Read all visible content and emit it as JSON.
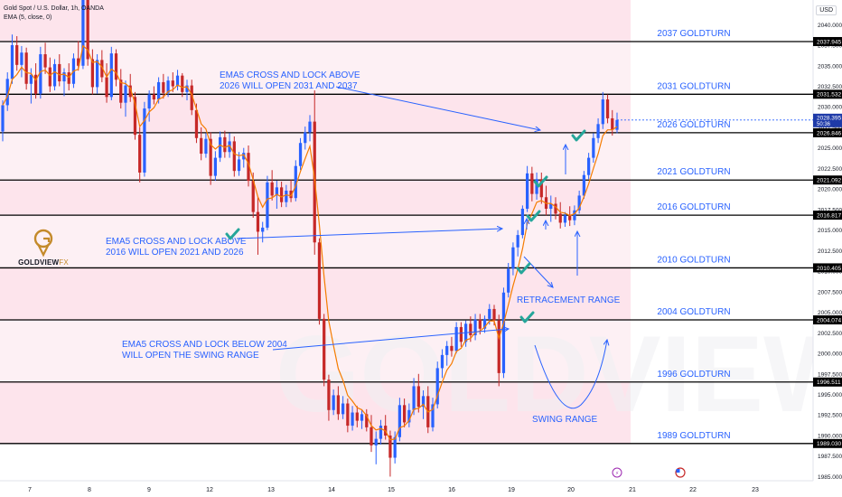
{
  "header": {
    "symbol_title": "Gold Spot / U.S. Dollar, 1h, OANDA",
    "indicator": "EMA (5, close, 0)",
    "currency": "USD"
  },
  "logo": {
    "brand_bold": "GOLDVIEW",
    "brand_light": "FX",
    "watermark": "GOLDVIEW"
  },
  "colors": {
    "pink_zone": "#fde4ec",
    "up_candle": "#2962ff",
    "down_candle": "#c62828",
    "ema_line": "#f57c00",
    "annotation": "#2962ff",
    "check": "#26a69a",
    "level_line": "#000000",
    "axis_text": "#131722"
  },
  "chart_data": {
    "type": "candlestick",
    "title": "Gold Spot / U.S. Dollar, 1h, OANDA",
    "ylim": [
      1984.5,
      2043.0
    ],
    "y_ticks": [
      1985.0,
      1987.5,
      1990.0,
      1992.5,
      1995.0,
      1997.5,
      2000.0,
      2002.5,
      2005.0,
      2007.5,
      2010.0,
      2012.5,
      2015.0,
      2017.5,
      2020.0,
      2022.5,
      2025.0,
      2027.5,
      2030.0,
      2032.5,
      2035.0,
      2037.5,
      2040.0
    ],
    "x_ticks": [
      "7",
      "8",
      "9",
      "12",
      "13",
      "14",
      "15",
      "16",
      "19",
      "20",
      "21",
      "22",
      "23"
    ],
    "current_price": "2028.395",
    "countdown": "50:36",
    "levels": [
      {
        "value": 2037.945,
        "label": "2037.945",
        "text": "2037 GOLDTURN"
      },
      {
        "value": 2031.532,
        "label": "2031.532",
        "text": "2031 GOLDTURN"
      },
      {
        "value": 2026.846,
        "label": "2026.846",
        "text": "2026 GOLDTURN"
      },
      {
        "value": 2021.092,
        "label": "2021.092",
        "text": "2021 GOLDTURN"
      },
      {
        "value": 2016.817,
        "label": "2016.817",
        "text": "2016 GOLDTURN"
      },
      {
        "value": 2010.405,
        "label": "2010.405",
        "text": "2010 GOLDTURN"
      },
      {
        "value": 2004.074,
        "label": "2004.074",
        "text": "2004 GOLDTURN"
      },
      {
        "value": 1996.511,
        "label": "1996.511",
        "text": "1996 GOLDTURN"
      },
      {
        "value": 1989.03,
        "label": "1989.030",
        "text": "1989 GOLDTURN"
      }
    ],
    "annotations": [
      {
        "lines": [
          "EMA5 CROSS AND LOCK ABOVE",
          "2026 WILL OPEN 2031 AND 2037"
        ]
      },
      {
        "lines": [
          "EMA5 CROSS AND LOCK ABOVE",
          "2016 WILL OPEN 2021 AND 2026"
        ]
      },
      {
        "lines": [
          "EMA5 CROSS AND LOCK BELOW 2004",
          "WILL OPEN THE SWING RANGE"
        ]
      },
      {
        "lines": [
          "RETRACEMENT RANGE"
        ]
      },
      {
        "lines": [
          "SWING RANGE"
        ]
      }
    ],
    "candles": [
      [
        2027.0,
        2030.8,
        2025.8,
        2030.2
      ],
      [
        2030.2,
        2034.2,
        2029.5,
        2033.4
      ],
      [
        2033.4,
        2038.8,
        2032.8,
        2037.5
      ],
      [
        2037.5,
        2038.6,
        2034.4,
        2035.1
      ],
      [
        2035.1,
        2037.4,
        2033.6,
        2036.6
      ],
      [
        2036.6,
        2037.2,
        2032.1,
        2032.8
      ],
      [
        2032.8,
        2034.7,
        2030.4,
        2033.9
      ],
      [
        2033.9,
        2035.3,
        2031.0,
        2031.6
      ],
      [
        2031.6,
        2037.3,
        2031.0,
        2036.4
      ],
      [
        2036.4,
        2037.8,
        2034.0,
        2034.8
      ],
      [
        2034.8,
        2036.0,
        2031.8,
        2032.5
      ],
      [
        2032.5,
        2035.8,
        2032.0,
        2035.2
      ],
      [
        2035.2,
        2036.4,
        2032.5,
        2033.1
      ],
      [
        2033.1,
        2034.7,
        2031.3,
        2034.2
      ],
      [
        2034.2,
        2035.3,
        2032.0,
        2032.8
      ],
      [
        2032.8,
        2036.5,
        2032.3,
        2035.9
      ],
      [
        2035.9,
        2038.0,
        2034.4,
        2035.0
      ],
      [
        2035.0,
        2046.0,
        2034.6,
        2043.2
      ],
      [
        2043.2,
        2044.5,
        2035.0,
        2035.8
      ],
      [
        2035.8,
        2037.0,
        2031.5,
        2032.4
      ],
      [
        2032.4,
        2036.4,
        2031.6,
        2035.7
      ],
      [
        2035.7,
        2036.9,
        2033.0,
        2033.6
      ],
      [
        2033.6,
        2035.3,
        2030.5,
        2031.2
      ],
      [
        2031.2,
        2037.3,
        2030.8,
        2036.5
      ],
      [
        2036.5,
        2037.0,
        2032.5,
        2033.3
      ],
      [
        2033.3,
        2034.6,
        2029.8,
        2030.5
      ],
      [
        2030.5,
        2033.2,
        2028.8,
        2032.6
      ],
      [
        2032.6,
        2034.0,
        2030.6,
        2031.2
      ],
      [
        2031.2,
        2031.8,
        2026.0,
        2026.6
      ],
      [
        2026.6,
        2027.5,
        2020.8,
        2022.0
      ],
      [
        2022.0,
        2030.6,
        2021.5,
        2029.8
      ],
      [
        2029.8,
        2032.0,
        2028.2,
        2031.5
      ],
      [
        2031.5,
        2032.5,
        2030.3,
        2030.9
      ],
      [
        2030.9,
        2033.6,
        2030.4,
        2033.0
      ],
      [
        2033.0,
        2034.0,
        2031.0,
        2031.7
      ],
      [
        2031.7,
        2033.7,
        2031.2,
        2033.2
      ],
      [
        2033.2,
        2034.2,
        2031.8,
        2032.5
      ],
      [
        2032.5,
        2034.5,
        2032.0,
        2033.8
      ],
      [
        2033.8,
        2034.1,
        2031.2,
        2031.8
      ],
      [
        2031.8,
        2033.3,
        2030.8,
        2032.6
      ],
      [
        2032.6,
        2033.3,
        2029.0,
        2029.6
      ],
      [
        2029.6,
        2030.4,
        2025.6,
        2026.2
      ],
      [
        2026.2,
        2027.5,
        2023.5,
        2024.3
      ],
      [
        2024.3,
        2026.8,
        2023.8,
        2026.1
      ],
      [
        2026.1,
        2026.9,
        2020.5,
        2021.6
      ],
      [
        2021.6,
        2024.6,
        2021.0,
        2023.8
      ],
      [
        2023.8,
        2027.0,
        2023.3,
        2026.3
      ],
      [
        2026.3,
        2027.1,
        2023.8,
        2024.5
      ],
      [
        2024.5,
        2026.8,
        2023.8,
        2025.8
      ],
      [
        2025.8,
        2026.4,
        2021.5,
        2022.2
      ],
      [
        2022.2,
        2024.5,
        2021.6,
        2023.6
      ],
      [
        2023.6,
        2025.0,
        2022.6,
        2024.4
      ],
      [
        2024.4,
        2025.3,
        2020.3,
        2021.0
      ],
      [
        2021.0,
        2022.0,
        2016.5,
        2017.2
      ],
      [
        2017.2,
        2019.0,
        2012.0,
        2014.8
      ],
      [
        2014.8,
        2016.0,
        2013.5,
        2015.3
      ],
      [
        2015.3,
        2021.6,
        2015.0,
        2020.8
      ],
      [
        2020.8,
        2022.3,
        2018.6,
        2019.2
      ],
      [
        2019.2,
        2021.0,
        2017.6,
        2020.2
      ],
      [
        2020.2,
        2020.9,
        2017.8,
        2018.4
      ],
      [
        2018.4,
        2020.5,
        2017.8,
        2019.8
      ],
      [
        2019.8,
        2021.1,
        2018.4,
        2018.9
      ],
      [
        2018.9,
        2023.5,
        2018.5,
        2022.8
      ],
      [
        2022.8,
        2026.2,
        2022.3,
        2025.6
      ],
      [
        2025.6,
        2027.6,
        2024.8,
        2026.9
      ],
      [
        2026.9,
        2029.0,
        2025.8,
        2028.2
      ],
      [
        2028.2,
        2032.0,
        2012.0,
        2013.5
      ],
      [
        2013.5,
        2014.0,
        2003.5,
        2004.2
      ],
      [
        2004.2,
        2004.8,
        1996.0,
        1996.8
      ],
      [
        1996.8,
        1997.4,
        1991.8,
        1993.1
      ],
      [
        1993.1,
        1995.6,
        1992.5,
        1994.9
      ],
      [
        1994.9,
        1996.0,
        1991.9,
        1992.6
      ],
      [
        1992.6,
        1994.8,
        1992.0,
        1993.9
      ],
      [
        1993.9,
        1994.5,
        1990.4,
        1991.2
      ],
      [
        1991.2,
        1993.6,
        1990.6,
        1992.8
      ],
      [
        1992.8,
        1993.6,
        1991.0,
        1991.8
      ],
      [
        1991.8,
        1993.2,
        1990.8,
        1992.6
      ],
      [
        1992.6,
        1993.2,
        1990.5,
        1991.0
      ],
      [
        1991.0,
        1992.5,
        1988.0,
        1988.8
      ],
      [
        1988.8,
        1990.5,
        1986.5,
        1989.6
      ],
      [
        1989.6,
        1991.9,
        1988.9,
        1991.2
      ],
      [
        1991.2,
        1992.5,
        1989.5,
        1990.0
      ],
      [
        1990.0,
        1990.6,
        1985.0,
        1987.3
      ],
      [
        1987.3,
        1990.5,
        1986.6,
        1989.8
      ],
      [
        1989.8,
        1994.6,
        1989.3,
        1993.7
      ],
      [
        1993.7,
        1994.5,
        1991.0,
        1991.6
      ],
      [
        1991.6,
        1993.9,
        1991.0,
        1993.1
      ],
      [
        1993.1,
        1997.0,
        1992.5,
        1996.0
      ],
      [
        1996.0,
        1997.5,
        1992.8,
        1993.5
      ],
      [
        1993.5,
        1995.5,
        1992.0,
        1994.8
      ],
      [
        1994.8,
        1996.0,
        1990.3,
        1991.0
      ],
      [
        1991.0,
        1994.6,
        1990.5,
        1993.8
      ],
      [
        1993.8,
        1999.0,
        1993.3,
        1998.2
      ],
      [
        1998.2,
        2000.5,
        1997.0,
        1999.8
      ],
      [
        1999.8,
        2001.5,
        1998.5,
        2000.9
      ],
      [
        2000.9,
        2002.0,
        1999.6,
        2000.3
      ],
      [
        2000.3,
        2003.8,
        2000.0,
        2003.2
      ],
      [
        2003.2,
        2003.8,
        2000.8,
        2001.4
      ],
      [
        2001.4,
        2004.0,
        2000.8,
        2003.6
      ],
      [
        2003.6,
        2004.5,
        2001.4,
        2002.2
      ],
      [
        2002.2,
        2004.8,
        2001.6,
        2004.1
      ],
      [
        2004.1,
        2004.8,
        2002.3,
        2003.0
      ],
      [
        2003.0,
        2004.6,
        2002.5,
        2004.2
      ],
      [
        2004.2,
        2006.0,
        2003.5,
        2005.4
      ],
      [
        2005.4,
        2005.9,
        2003.4,
        2004.0
      ],
      [
        2004.0,
        2004.7,
        1996.0,
        1997.6
      ],
      [
        1997.6,
        2008.0,
        1997.0,
        2007.4
      ],
      [
        2007.4,
        2011.0,
        2006.8,
        2010.3
      ],
      [
        2010.3,
        2013.5,
        2009.5,
        2012.9
      ],
      [
        2012.9,
        2015.0,
        2011.8,
        2014.4
      ],
      [
        2014.4,
        2018.0,
        2014.0,
        2017.6
      ],
      [
        2017.6,
        2022.8,
        2017.2,
        2021.9
      ],
      [
        2021.9,
        2022.7,
        2018.5,
        2019.4
      ],
      [
        2019.4,
        2022.0,
        2018.7,
        2021.2
      ],
      [
        2021.2,
        2022.0,
        2018.2,
        2019.0
      ],
      [
        2019.0,
        2020.4,
        2016.8,
        2017.6
      ],
      [
        2017.6,
        2019.2,
        2016.0,
        2018.2
      ],
      [
        2018.2,
        2019.0,
        2016.3,
        2017.0
      ],
      [
        2017.0,
        2018.4,
        2015.2,
        2015.9
      ],
      [
        2015.9,
        2017.2,
        2015.4,
        2016.8
      ],
      [
        2016.8,
        2017.9,
        2015.5,
        2016.2
      ],
      [
        2016.2,
        2018.0,
        2015.6,
        2017.4
      ],
      [
        2017.4,
        2019.8,
        2017.0,
        2019.2
      ],
      [
        2019.2,
        2022.2,
        2018.8,
        2021.7
      ],
      [
        2021.7,
        2024.4,
        2021.2,
        2023.8
      ],
      [
        2023.8,
        2026.8,
        2023.2,
        2026.2
      ],
      [
        2026.2,
        2028.6,
        2025.6,
        2027.9
      ],
      [
        2027.9,
        2031.8,
        2027.3,
        2030.9
      ],
      [
        2030.9,
        2031.5,
        2028.0,
        2028.6
      ],
      [
        2028.6,
        2029.6,
        2026.5,
        2027.2
      ],
      [
        2027.2,
        2029.3,
        2026.8,
        2028.4
      ]
    ]
  }
}
